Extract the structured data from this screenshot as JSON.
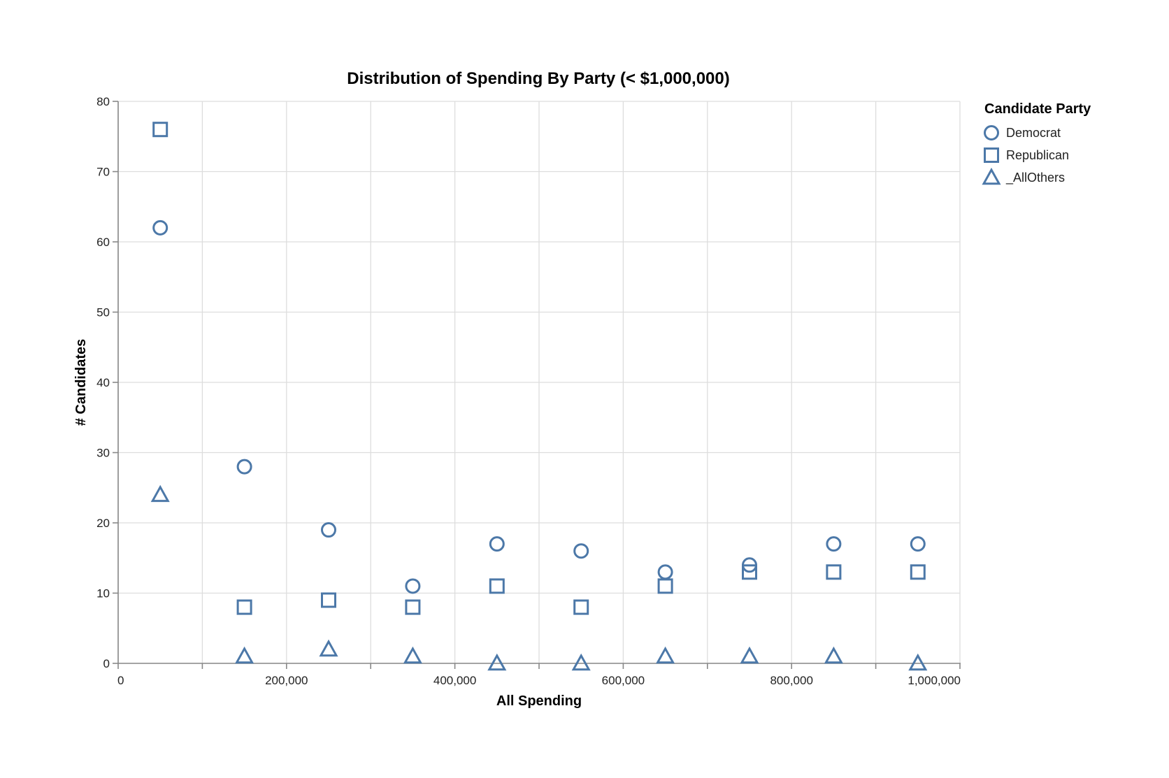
{
  "chart_data": {
    "type": "scatter",
    "title": "Distribution of Spending By Party (< $1,000,000)",
    "xlabel": "All Spending",
    "ylabel": "# Candidates",
    "xlim": [
      0,
      1000000
    ],
    "ylim": [
      0,
      80
    ],
    "x_ticks": [
      0,
      200000,
      400000,
      600000,
      800000,
      1000000
    ],
    "x_tick_labels": [
      "0",
      "200,000",
      "400,000",
      "600,000",
      "800,000",
      "1,000,000"
    ],
    "y_ticks": [
      0,
      10,
      20,
      30,
      40,
      50,
      60,
      70,
      80
    ],
    "y_tick_labels": [
      "0",
      "10",
      "20",
      "30",
      "40",
      "50",
      "60",
      "70",
      "80"
    ],
    "x_gridlines": [
      0,
      100000,
      200000,
      300000,
      400000,
      500000,
      600000,
      700000,
      800000,
      900000,
      1000000
    ],
    "grid": true,
    "legend": {
      "title": "Candidate Party",
      "placement": "right"
    },
    "marker_color": "#4c78a8",
    "series": [
      {
        "name": "Democrat",
        "shape": "circle",
        "x": [
          50000,
          150000,
          250000,
          350000,
          450000,
          550000,
          650000,
          750000,
          850000,
          950000
        ],
        "y": [
          62,
          28,
          19,
          11,
          17,
          16,
          13,
          14,
          17,
          17
        ]
      },
      {
        "name": "Republican",
        "shape": "square",
        "x": [
          50000,
          150000,
          250000,
          350000,
          450000,
          550000,
          650000,
          750000,
          850000,
          950000
        ],
        "y": [
          76,
          8,
          9,
          8,
          11,
          8,
          11,
          13,
          13,
          13
        ]
      },
      {
        "name": "_AllOthers",
        "shape": "triangle",
        "x": [
          50000,
          150000,
          250000,
          350000,
          450000,
          550000,
          650000,
          750000,
          850000,
          950000
        ],
        "y": [
          24,
          1,
          2,
          1,
          0,
          0,
          1,
          1,
          1,
          0
        ]
      }
    ]
  }
}
